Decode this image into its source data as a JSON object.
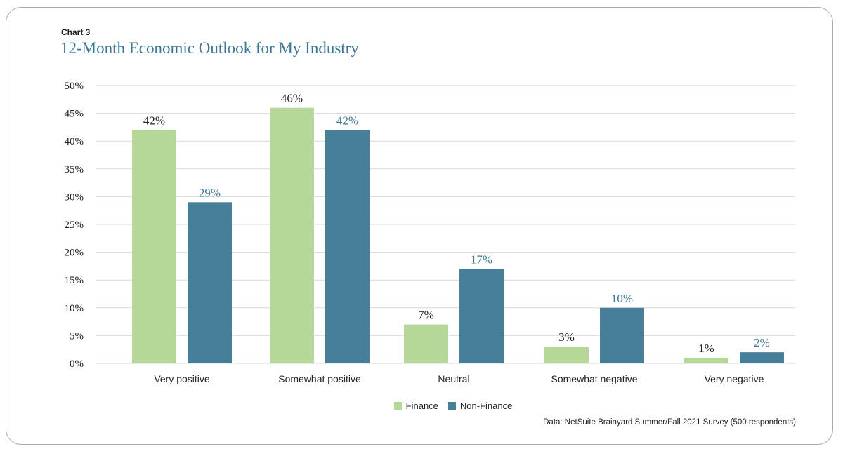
{
  "header": {
    "kicker": "Chart 3",
    "title": "12-Month Economic Outlook for My Industry"
  },
  "source_note": "Data: NetSuite Brainyard Summer/Fall 2021 Survey (500 respondents)",
  "colors": {
    "finance": "#b5d898",
    "non_finance": "#477e98",
    "finance_label": "#222222",
    "non_finance_label": "#3e7795",
    "grid": "#d9d9d9",
    "border": "#a9a9a9"
  },
  "legend": {
    "items": [
      {
        "label": "Finance",
        "color": "#b5d898"
      },
      {
        "label": "Non-Finance",
        "color": "#477e98"
      }
    ]
  },
  "chart_data": {
    "type": "bar",
    "title": "12-Month Economic Outlook for My Industry",
    "xlabel": "",
    "ylabel": "",
    "categories": [
      "Very positive",
      "Somewhat positive",
      "Neutral",
      "Somewhat negative",
      "Very negative"
    ],
    "series": [
      {
        "name": "Finance",
        "values": [
          42,
          46,
          7,
          3,
          1
        ]
      },
      {
        "name": "Non-Finance",
        "values": [
          29,
          42,
          17,
          10,
          2
        ]
      }
    ],
    "ylim": [
      0,
      50
    ],
    "yticks": [
      0,
      5,
      10,
      15,
      20,
      25,
      30,
      35,
      40,
      45,
      50
    ],
    "ytick_suffix": "%",
    "grid": true,
    "legend_position": "bottom-center",
    "data_labels": true
  }
}
